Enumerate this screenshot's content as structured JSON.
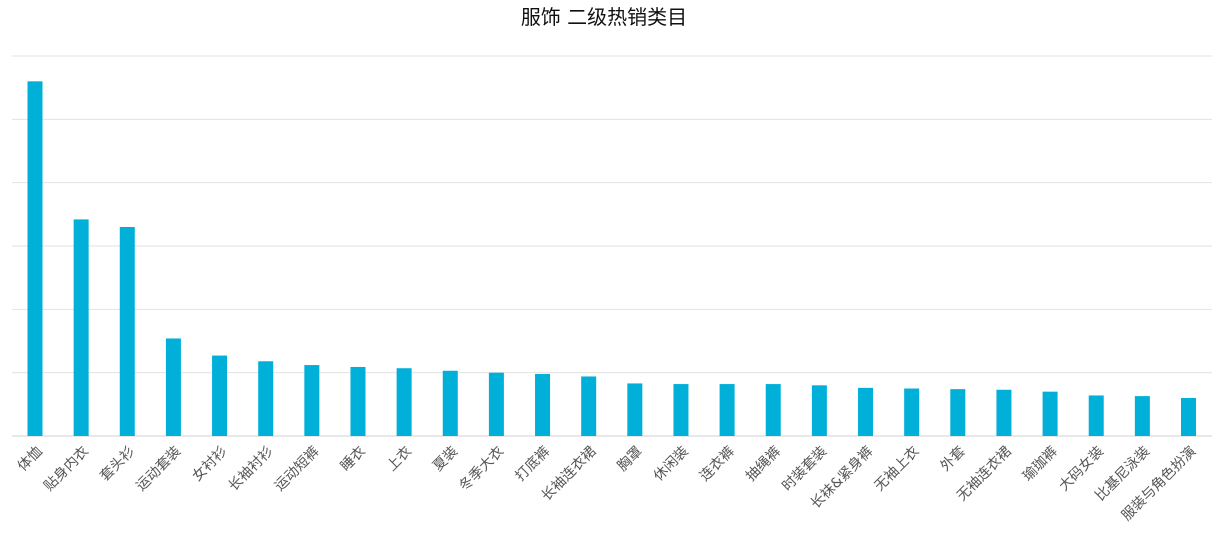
{
  "chart_data": {
    "type": "bar",
    "title": "服饰 二级热销类目",
    "categories": [
      "体恤",
      "贴身内衣",
      "套头衫",
      "运动套装",
      "女衬衫",
      "长袖衬衫",
      "运动短裤",
      "睡衣",
      "上衣",
      "夏装",
      "冬季大衣",
      "打底裤",
      "长袖连衣裙",
      "胸罩",
      "休闲装",
      "连衣裤",
      "抽绳裤",
      "时装套装",
      "长袜&紧身裤",
      "无袖上衣",
      "外套",
      "无袖连衣裙",
      "瑜珈裤",
      "大码女装",
      "比基尼泳装",
      "服装与角色扮演"
    ],
    "values": [
      5.6,
      3.42,
      3.3,
      1.54,
      1.27,
      1.18,
      1.12,
      1.09,
      1.07,
      1.03,
      1.0,
      0.98,
      0.94,
      0.83,
      0.82,
      0.82,
      0.82,
      0.8,
      0.76,
      0.75,
      0.74,
      0.73,
      0.7,
      0.64,
      0.63,
      0.6
    ],
    "ylim": [
      0,
      6
    ],
    "grid": true,
    "legend": "none",
    "bar_color": "#00b0d8",
    "xlabel": "",
    "ylabel": ""
  }
}
